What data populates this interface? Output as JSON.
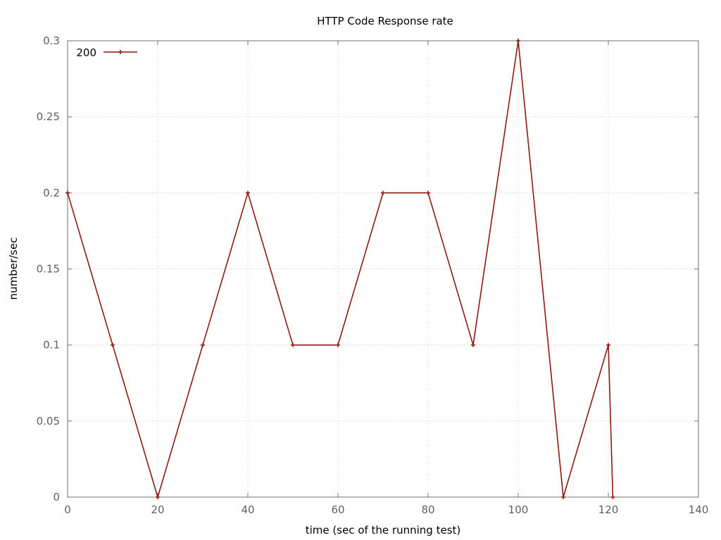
{
  "chart_data": {
    "type": "line",
    "title": "HTTP Code Response rate",
    "xlabel": "time (sec of the running test)",
    "ylabel": "number/sec",
    "xlim": [
      0,
      140
    ],
    "ylim": [
      0,
      0.3
    ],
    "xticks": [
      0,
      20,
      40,
      60,
      80,
      100,
      120,
      140
    ],
    "yticks": [
      0,
      0.05,
      0.1,
      0.15,
      0.2,
      0.25,
      0.3
    ],
    "xtick_labels": [
      "0",
      "20",
      "40",
      "60",
      "80",
      "100",
      "120",
      "140"
    ],
    "ytick_labels": [
      "0",
      "0.05",
      "0.1",
      "0.15",
      "0.2",
      "0.25",
      "0.3"
    ],
    "grid": true,
    "legend_position": "top-left",
    "series": [
      {
        "name": "200",
        "color": "#8b1a10",
        "marker": "plus",
        "x": [
          0,
          10,
          20,
          30,
          40,
          50,
          60,
          70,
          80,
          90,
          100,
          110,
          120,
          121
        ],
        "y": [
          0.2,
          0.1,
          0,
          0.1,
          0.2,
          0.1,
          0.1,
          0.2,
          0.2,
          0.1,
          0.3,
          0,
          0.1,
          0
        ]
      }
    ]
  }
}
